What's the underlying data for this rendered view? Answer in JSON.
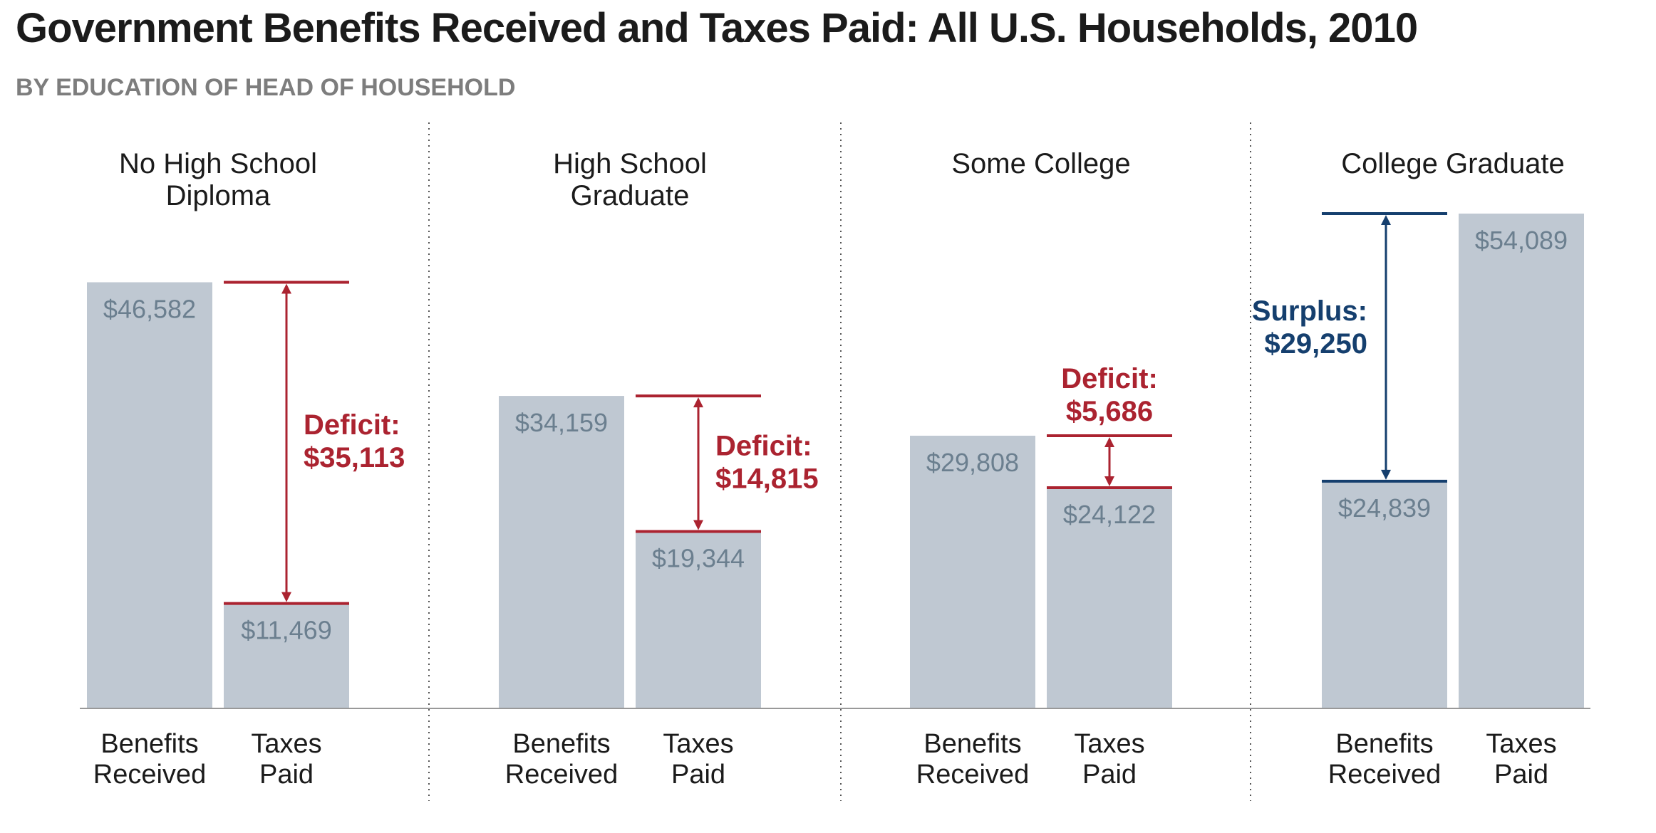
{
  "title": "Government Benefits Received and Taxes Paid: All U.S. Households, 2010",
  "subtitle": "BY EDUCATION OF HEAD OF HOUSEHOLD",
  "colors": {
    "bar": "#bfc8d2",
    "bar_value_text": "#6b7f8f",
    "deficit": "#ab2330",
    "surplus": "#153f6e",
    "axis": "#999999",
    "divider": "#555555",
    "label_text": "#1b1b1b"
  },
  "chart_data": {
    "type": "bar",
    "title": "Government Benefits Received and Taxes Paid: All U.S. Households, 2010",
    "subtitle": "BY EDUCATION OF HEAD OF HOUSEHOLD",
    "categories": [
      "Benefits Received",
      "Taxes Paid"
    ],
    "ylim": [
      0,
      54089
    ],
    "groups": [
      {
        "name_lines": [
          "No High School",
          "Diploma"
        ],
        "benefits": 46582,
        "benefits_label": "$46,582",
        "taxes": 11469,
        "taxes_label": "$11,469",
        "gap_type": "deficit",
        "gap_label_lines": [
          "Deficit:",
          "$35,113"
        ]
      },
      {
        "name_lines": [
          "High School",
          "Graduate"
        ],
        "benefits": 34159,
        "benefits_label": "$34,159",
        "taxes": 19344,
        "taxes_label": "$19,344",
        "gap_type": "deficit",
        "gap_label_lines": [
          "Deficit:",
          "$14,815"
        ]
      },
      {
        "name_lines": [
          "Some College"
        ],
        "benefits": 29808,
        "benefits_label": "$29,808",
        "taxes": 24122,
        "taxes_label": "$24,122",
        "gap_type": "deficit",
        "gap_label_lines": [
          "Deficit:",
          "$5,686"
        ]
      },
      {
        "name_lines": [
          "College Graduate"
        ],
        "benefits": 24839,
        "benefits_label": "$24,839",
        "taxes": 54089,
        "taxes_label": "$54,089",
        "gap_type": "surplus",
        "gap_label_lines": [
          "Surplus:",
          "$29,250"
        ]
      }
    ],
    "bar_labels": [
      [
        "Benefits",
        "Received"
      ],
      [
        "Taxes",
        "Paid"
      ]
    ]
  }
}
